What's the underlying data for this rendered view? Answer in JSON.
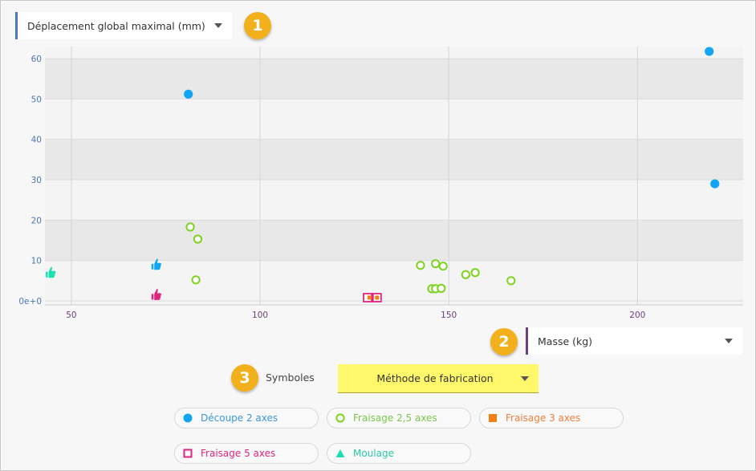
{
  "y_selector": {
    "label": "Déplacement global maximal (mm)"
  },
  "x_selector": {
    "label": "Masse (kg)"
  },
  "symbols": {
    "label": "Symboles",
    "selected": "Méthode de fabrication",
    "highlight_color": "#fff86a"
  },
  "badges": [
    "1",
    "2",
    "3"
  ],
  "colors": {
    "decoupe": "#12a5f4",
    "fraisage25": "#7ed321",
    "fraisage3": "#f57f17",
    "fraisage5": "#e0257f",
    "moulage": "#1de0b0",
    "badge": "#f2b01c",
    "y_tick": "#4a78b8",
    "x_tick": "#6b3d82"
  },
  "legend": [
    {
      "label": "Découpe 2 axes",
      "symbol": "filled-circle",
      "color": "#12a5f4"
    },
    {
      "label": "Fraisage 2,5 axes",
      "symbol": "ring",
      "color": "#7ed321"
    },
    {
      "label": "Fraisage 3 axes",
      "symbol": "filled-square",
      "color": "#f57f17"
    },
    {
      "label": "Fraisage 5 axes",
      "symbol": "hollow-square",
      "color": "#e0257f"
    },
    {
      "label": "Moulage",
      "symbol": "triangle",
      "color": "#1de0b0"
    }
  ],
  "chart_data": {
    "type": "scatter",
    "xlabel": "Masse (kg)",
    "ylabel": "Déplacement global maximal (mm)",
    "xlim": [
      43,
      228
    ],
    "ylim": [
      -1,
      63
    ],
    "x_ticks": [
      {
        "value": 50,
        "label": "50"
      },
      {
        "value": 100,
        "label": "100"
      },
      {
        "value": 150,
        "label": "150"
      },
      {
        "value": 200,
        "label": "200"
      }
    ],
    "y_ticks": [
      {
        "value": 0,
        "label": "0e+0"
      },
      {
        "value": 10,
        "label": "10"
      },
      {
        "value": 20,
        "label": "20"
      },
      {
        "value": 30,
        "label": "30"
      },
      {
        "value": 40,
        "label": "40"
      },
      {
        "value": 50,
        "label": "50"
      },
      {
        "value": 60,
        "label": "60"
      }
    ],
    "bands": [
      [
        10,
        20
      ],
      [
        30,
        40
      ],
      [
        50,
        60
      ]
    ],
    "series": [
      {
        "name": "Découpe 2 axes",
        "symbol": "filled-circle",
        "color": "#12a5f4",
        "points": [
          [
            81,
            51.2
          ],
          [
            219,
            61.8
          ],
          [
            220.5,
            29
          ]
        ]
      },
      {
        "name": "Fraisage 2,5 axes",
        "symbol": "ring",
        "color": "#7ed321",
        "points": [
          [
            81.5,
            18.3
          ],
          [
            83.5,
            15.3
          ],
          [
            83,
            5.2
          ],
          [
            142.5,
            8.8
          ],
          [
            146.5,
            9.2
          ],
          [
            148.5,
            8.6
          ],
          [
            145.5,
            3
          ],
          [
            146.5,
            3
          ],
          [
            148,
            3.1
          ],
          [
            154.5,
            6.5
          ],
          [
            157,
            7
          ],
          [
            166.5,
            5
          ]
        ]
      },
      {
        "name": "Fraisage 5 axes",
        "symbol": "hollow-square",
        "color": "#e0257f",
        "points": [
          [
            128.5,
            0.8
          ],
          [
            131,
            0.8
          ]
        ]
      },
      {
        "name": "Fraisage 3 axes",
        "symbol": "filled-square",
        "color": "#f57f17",
        "points": [
          [
            129,
            0.8
          ],
          [
            131,
            0.8
          ]
        ]
      }
    ],
    "best_markers": [
      {
        "name": "Découpe 2 axes",
        "color": "#12a5f4",
        "point": [
          72.5,
          9
        ]
      },
      {
        "name": "Fraisage 5 axes",
        "color": "#e0257f",
        "point": [
          72.5,
          1.5
        ]
      },
      {
        "name": "Moulage",
        "color": "#1de0b0",
        "point": [
          44.5,
          7
        ]
      }
    ]
  }
}
